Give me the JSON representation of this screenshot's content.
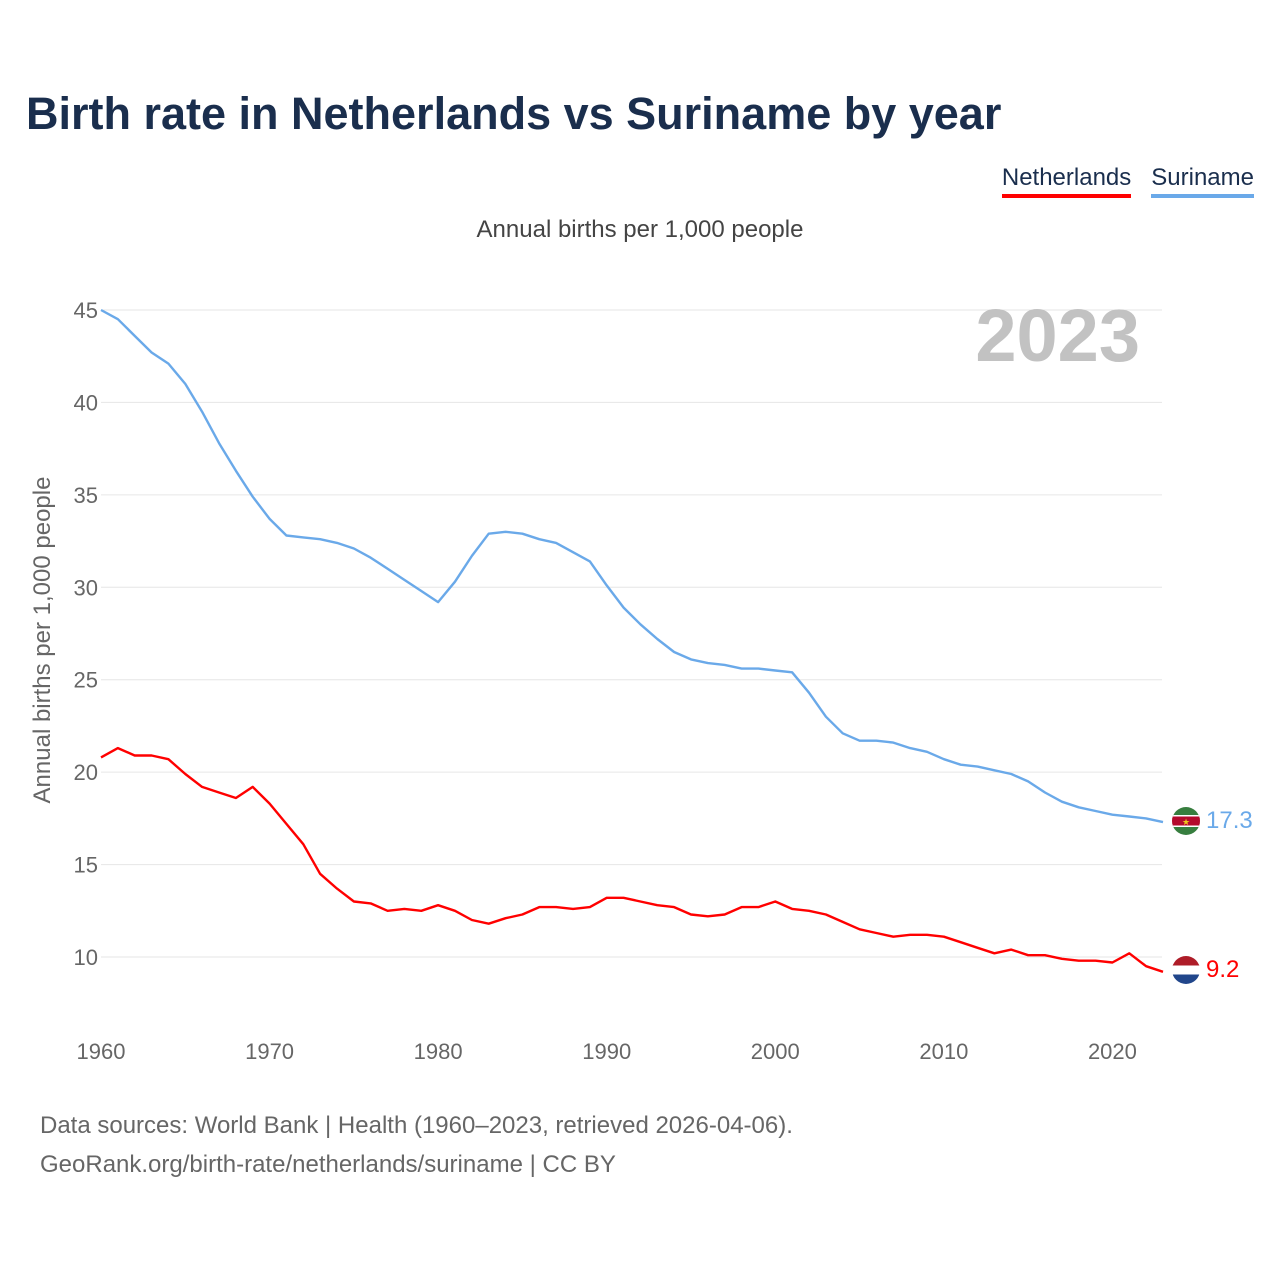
{
  "title": "Birth rate in Netherlands vs Suriname by year",
  "legend": [
    {
      "name": "Netherlands",
      "color": "#ff0000"
    },
    {
      "name": "Suriname",
      "color": "#6aa9e9"
    }
  ],
  "subtitle": "Annual births per 1,000 people",
  "footer": {
    "line1": "Data sources: World Bank | Health (1960–2023, retrieved 2026-04-06).",
    "line2": "GeoRank.org/birth-rate/netherlands/suriname | CC BY"
  },
  "chart_data": {
    "type": "line",
    "title": "Birth rate in Netherlands vs Suriname by year",
    "ylabel": "Annual births per 1,000 people",
    "xlabel": "",
    "year_label": "2023",
    "xlim": [
      1960,
      2023
    ],
    "ylim": [
      7,
      45
    ],
    "yticks": [
      10,
      15,
      20,
      25,
      30,
      35,
      40,
      45
    ],
    "xticks": [
      1960,
      1970,
      1980,
      1990,
      2000,
      2010,
      2020
    ],
    "grid": true,
    "x": [
      1960,
      1961,
      1962,
      1963,
      1964,
      1965,
      1966,
      1967,
      1968,
      1969,
      1970,
      1971,
      1972,
      1973,
      1974,
      1975,
      1976,
      1977,
      1978,
      1979,
      1980,
      1981,
      1982,
      1983,
      1984,
      1985,
      1986,
      1987,
      1988,
      1989,
      1990,
      1991,
      1992,
      1993,
      1994,
      1995,
      1996,
      1997,
      1998,
      1999,
      2000,
      2001,
      2002,
      2003,
      2004,
      2005,
      2006,
      2007,
      2008,
      2009,
      2010,
      2011,
      2012,
      2013,
      2014,
      2015,
      2016,
      2017,
      2018,
      2019,
      2020,
      2021,
      2022,
      2023
    ],
    "series": [
      {
        "name": "Netherlands",
        "color": "#ff0000",
        "end_label": "9.2",
        "values": [
          20.8,
          21.3,
          20.9,
          20.9,
          20.7,
          19.9,
          19.2,
          18.9,
          18.6,
          19.2,
          18.3,
          17.2,
          16.1,
          14.5,
          13.7,
          13.0,
          12.9,
          12.5,
          12.6,
          12.5,
          12.8,
          12.5,
          12.0,
          11.8,
          12.1,
          12.3,
          12.7,
          12.7,
          12.6,
          12.7,
          13.2,
          13.2,
          13.0,
          12.8,
          12.7,
          12.3,
          12.2,
          12.3,
          12.7,
          12.7,
          13.0,
          12.6,
          12.5,
          12.3,
          11.9,
          11.5,
          11.3,
          11.1,
          11.2,
          11.2,
          11.1,
          10.8,
          10.5,
          10.2,
          10.4,
          10.1,
          10.1,
          9.9,
          9.8,
          9.8,
          9.7,
          10.2,
          9.5,
          9.2
        ]
      },
      {
        "name": "Suriname",
        "color": "#6aa9e9",
        "end_label": "17.3",
        "values": [
          45.0,
          44.5,
          43.6,
          42.7,
          42.1,
          41.0,
          39.5,
          37.8,
          36.3,
          34.9,
          33.7,
          32.8,
          32.7,
          32.6,
          32.4,
          32.1,
          31.6,
          31.0,
          30.4,
          29.8,
          29.2,
          30.3,
          31.7,
          32.9,
          33.0,
          32.9,
          32.6,
          32.4,
          31.9,
          31.4,
          30.1,
          28.9,
          28.0,
          27.2,
          26.5,
          26.1,
          25.9,
          25.8,
          25.6,
          25.6,
          25.5,
          25.4,
          24.3,
          23.0,
          22.1,
          21.7,
          21.7,
          21.6,
          21.3,
          21.1,
          20.7,
          20.4,
          20.3,
          20.1,
          19.9,
          19.5,
          18.9,
          18.4,
          18.1,
          17.9,
          17.7,
          17.6,
          17.5,
          17.3
        ]
      }
    ]
  }
}
